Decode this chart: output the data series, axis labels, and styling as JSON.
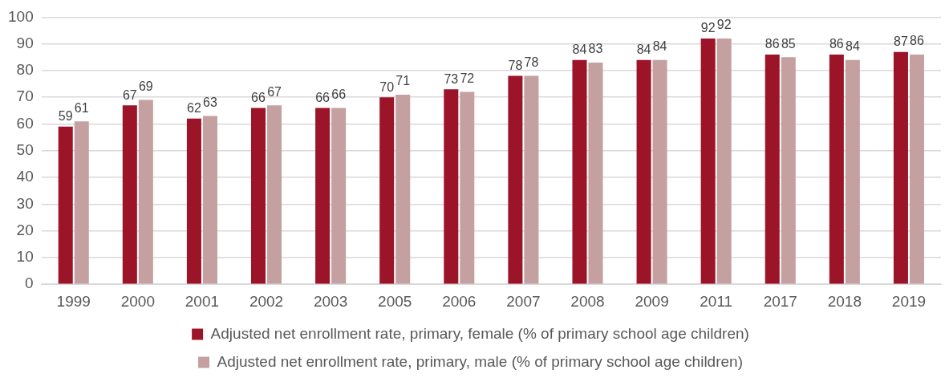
{
  "chart_data": {
    "type": "bar",
    "categories": [
      "1999",
      "2000",
      "2001",
      "2002",
      "2003",
      "2005",
      "2006",
      "2007",
      "2008",
      "2009",
      "2011",
      "2017",
      "2018",
      "2019"
    ],
    "series": [
      {
        "name": "Adjusted net enrollment rate, primary, female (% of primary school age children)",
        "color": "#9b1428",
        "values": [
          59,
          67,
          62,
          66,
          66,
          70,
          73,
          78,
          84,
          84,
          92,
          86,
          86,
          87
        ]
      },
      {
        "name": "Adjusted net enrollment rate, primary, male (% of primary school age children)",
        "color": "#c4a0a0",
        "values": [
          61,
          69,
          63,
          67,
          66,
          71,
          72,
          78,
          83,
          84,
          92,
          85,
          84,
          86
        ]
      }
    ],
    "ylim": [
      0,
      100
    ],
    "yticks": [
      0,
      10,
      20,
      30,
      40,
      50,
      60,
      70,
      80,
      90,
      100
    ],
    "grid": "y",
    "legend": "bottom",
    "data_labels": true
  }
}
